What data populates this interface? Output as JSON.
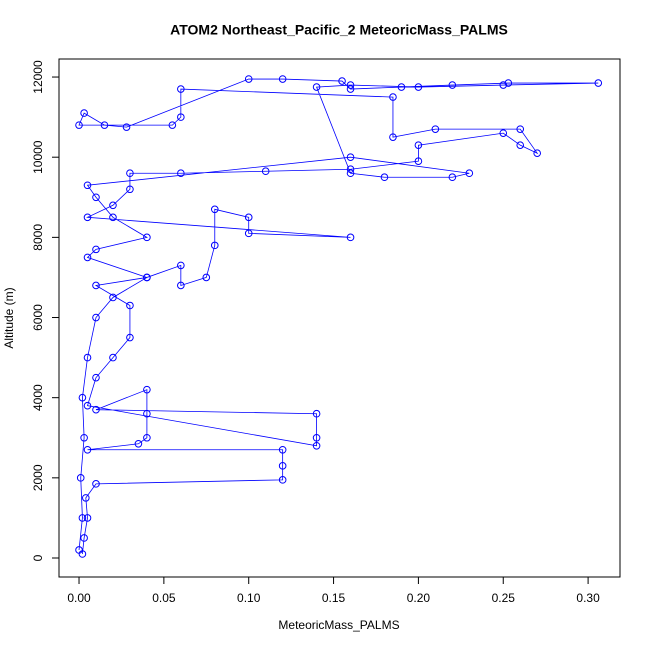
{
  "chart_data": {
    "type": "line",
    "title": "ATOM2 Northeast_Pacific_2 MeteoricMass_PALMS",
    "x_label": "MeteoricMass_PALMS",
    "y_label": "Altitude (m)",
    "xlim": [
      -0.0118,
      0.3188
    ],
    "ylim": [
      -474,
      12450
    ],
    "xticks": [
      {
        "value": 0,
        "label": "0.00"
      },
      {
        "value": 0.05,
        "label": "0.05"
      },
      {
        "value": 0.1,
        "label": "0.10"
      },
      {
        "value": 0.15,
        "label": "0.15"
      },
      {
        "value": 0.2,
        "label": "0.20"
      },
      {
        "value": 0.25,
        "label": "0.25"
      },
      {
        "value": 0.3,
        "label": "0.30"
      }
    ],
    "yticks": [
      0,
      2000,
      4000,
      6000,
      8000,
      10000,
      12000
    ],
    "grid": false,
    "series": [
      {
        "color": "#0000ff",
        "x": [
          0.002,
          0.003,
          0.005,
          0.004,
          0.01,
          0.12,
          0.12,
          0.12,
          0.005,
          0.035,
          0.04,
          0.04,
          0.04,
          0.01,
          0.14,
          0.14,
          0.14,
          0.005,
          0.01,
          0.02,
          0.03,
          0.03,
          0.01,
          0.04,
          0.06,
          0.06,
          0.075,
          0.08,
          0.08,
          0.1,
          0.1,
          0.16,
          0.005,
          0.02,
          0.03,
          0.03,
          0.06,
          0.11,
          0.16,
          0.2,
          0.2,
          0.25,
          0.26,
          0.27,
          0.26,
          0.21,
          0.185,
          0.185,
          0.06,
          0.06,
          0.055,
          0.0,
          0.003,
          0.015,
          0.028,
          0.1,
          0.12,
          0.155,
          0.16,
          0.19,
          0.22,
          0.253,
          0.306,
          0.25,
          0.2,
          0.16,
          0.14,
          0.16,
          0.18,
          0.22,
          0.23,
          0.16,
          0.005,
          0.01,
          0.02,
          0.04,
          0.01,
          0.005,
          0.04,
          0.02,
          0.01,
          0.005,
          0.002,
          0.003,
          0.001,
          0.002,
          0.0
        ],
        "y": [
          100,
          500,
          1000,
          1500,
          1850,
          1950,
          2300,
          2700,
          2700,
          2850,
          3000,
          3600,
          4200,
          3700,
          3600,
          3000,
          2800,
          3800,
          4500,
          5000,
          5500,
          6300,
          6800,
          7000,
          7300,
          6800,
          7000,
          7800,
          8700,
          8500,
          8100,
          8000,
          8500,
          8800,
          9200,
          9600,
          9600,
          9650,
          9700,
          9900,
          10300,
          10600,
          10300,
          10100,
          10700,
          10700,
          10500,
          11500,
          11700,
          11000,
          10800,
          10800,
          11100,
          10800,
          10750,
          11950,
          11950,
          11900,
          11700,
          11750,
          11800,
          11850,
          11850,
          11800,
          11750,
          11800,
          11750,
          9600,
          9500,
          9500,
          9600,
          10000,
          9300,
          9000,
          8500,
          8000,
          7700,
          7500,
          7000,
          6500,
          6000,
          5000,
          4000,
          3000,
          2000,
          1000,
          200
        ]
      }
    ]
  }
}
